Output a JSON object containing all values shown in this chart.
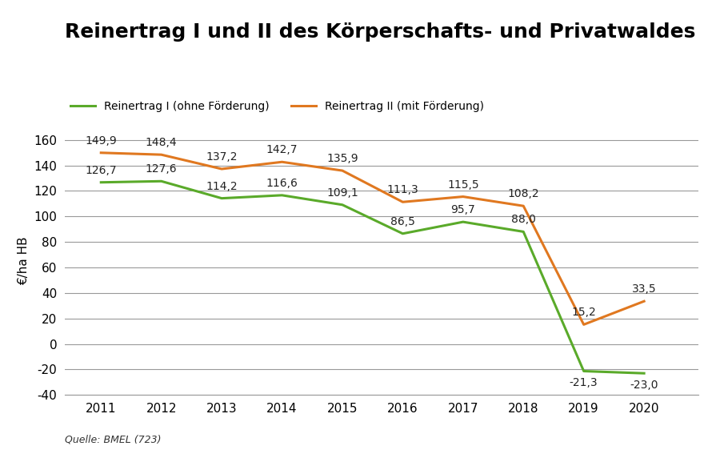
{
  "title": "Reinertrag I und II des Körperschafts- und Privatwaldes",
  "years": [
    2011,
    2012,
    2013,
    2014,
    2015,
    2016,
    2017,
    2018,
    2019,
    2020
  ],
  "reinertrag_I": [
    126.7,
    127.6,
    114.2,
    116.6,
    109.1,
    86.5,
    95.7,
    88.0,
    -21.3,
    -23.0
  ],
  "reinertrag_II": [
    149.9,
    148.4,
    137.2,
    142.7,
    135.9,
    111.3,
    115.5,
    108.2,
    15.2,
    33.5
  ],
  "color_I": "#5aaa2a",
  "color_II": "#e07820",
  "ylabel": "€/ha HB",
  "legend_I": "Reinertrag I (ohne Förderung)",
  "legend_II": "Reinertrag II (mit Förderung)",
  "source": "Quelle: BMEL (723)",
  "ylim": [
    -40,
    170
  ],
  "yticks": [
    -40,
    -20,
    0,
    20,
    40,
    60,
    80,
    100,
    120,
    140,
    160
  ],
  "background_color": "#ffffff",
  "grid_color": "#999999",
  "title_fontsize": 18,
  "axis_fontsize": 11,
  "annotation_fontsize": 10,
  "legend_fontsize": 10,
  "source_fontsize": 9,
  "line_width": 2.2
}
